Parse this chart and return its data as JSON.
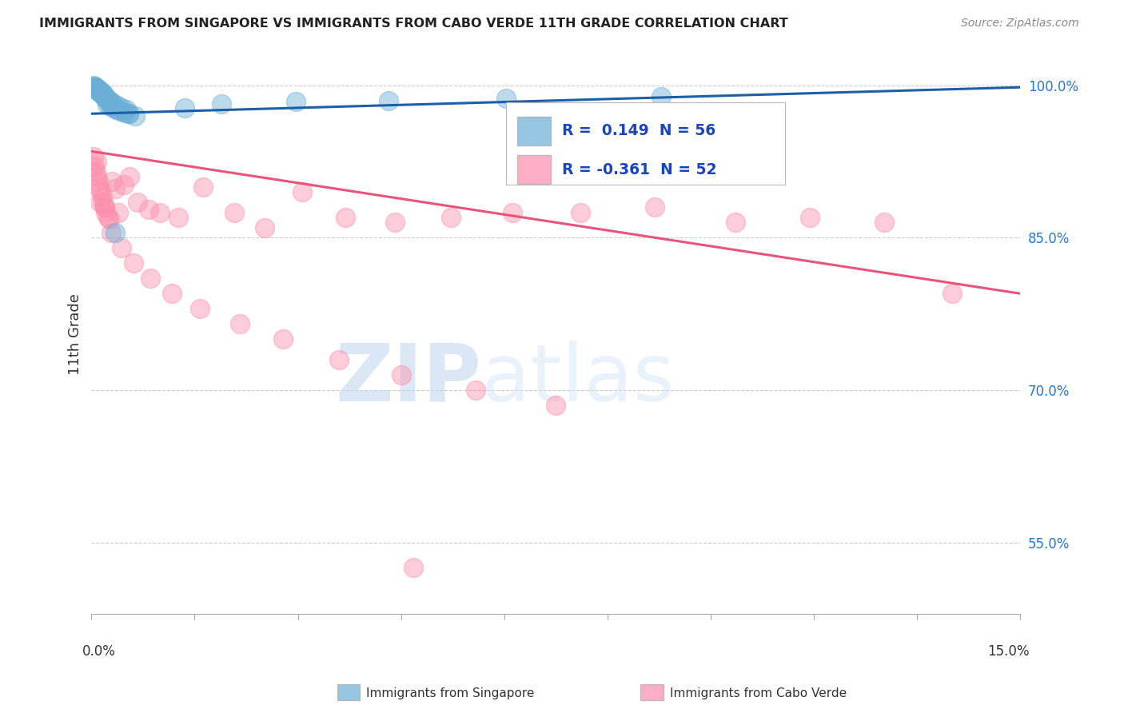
{
  "title": "IMMIGRANTS FROM SINGAPORE VS IMMIGRANTS FROM CABO VERDE 11TH GRADE CORRELATION CHART",
  "source": "Source: ZipAtlas.com",
  "ylabel": "11th Grade",
  "xmin": 0.0,
  "xmax": 15.0,
  "ymin": 48.0,
  "ymax": 103.0,
  "ytick_positions": [
    55.0,
    70.0,
    85.0,
    100.0
  ],
  "ytick_labels": [
    "55.0%",
    "70.0%",
    "85.0%",
    "100.0%"
  ],
  "legend_blue_label": "Immigrants from Singapore",
  "legend_pink_label": "Immigrants from Cabo Verde",
  "R_blue": "0.149",
  "N_blue": "56",
  "R_pink": "-0.361",
  "N_pink": "52",
  "blue_line_x": [
    0.0,
    15.0
  ],
  "blue_line_y": [
    97.2,
    99.8
  ],
  "pink_line_x": [
    0.0,
    15.0
  ],
  "pink_line_y": [
    93.5,
    79.5
  ],
  "watermark_text": "ZIPatlas",
  "background_color": "#ffffff",
  "blue_color": "#6baed6",
  "pink_color": "#fc8eac",
  "blue_line_color": "#1a5fa8",
  "pink_line_color": "#e8547a",
  "grid_color": "#cccccc",
  "blue_scatter_x": [
    0.03,
    0.04,
    0.05,
    0.06,
    0.07,
    0.08,
    0.09,
    0.1,
    0.11,
    0.12,
    0.13,
    0.14,
    0.15,
    0.16,
    0.17,
    0.18,
    0.19,
    0.2,
    0.22,
    0.24,
    0.26,
    0.28,
    0.3,
    0.33,
    0.37,
    0.4,
    0.45,
    0.5,
    0.6,
    0.7,
    0.05,
    0.08,
    0.1,
    0.12,
    0.15,
    0.18,
    0.2,
    0.22,
    0.25,
    0.28,
    0.32,
    0.36,
    0.42,
    0.48,
    0.56,
    2.1,
    3.3,
    4.8,
    6.7,
    9.2,
    1.5,
    0.6,
    0.38,
    0.3,
    0.25,
    0.55
  ],
  "blue_scatter_y": [
    100.0,
    99.8,
    99.9,
    99.7,
    99.8,
    99.6,
    99.7,
    99.5,
    99.6,
    99.4,
    99.5,
    99.3,
    99.4,
    99.2,
    99.3,
    99.1,
    99.2,
    99.0,
    98.8,
    98.6,
    98.5,
    98.4,
    98.2,
    98.0,
    97.8,
    97.6,
    97.5,
    97.4,
    97.2,
    97.0,
    99.8,
    99.6,
    99.5,
    99.4,
    99.3,
    99.1,
    99.0,
    98.9,
    98.7,
    98.5,
    98.4,
    98.2,
    98.0,
    97.8,
    97.6,
    98.2,
    98.4,
    98.5,
    98.7,
    98.9,
    97.8,
    97.2,
    85.5,
    97.9,
    98.1,
    97.3
  ],
  "pink_scatter_x": [
    0.03,
    0.05,
    0.07,
    0.09,
    0.11,
    0.13,
    0.15,
    0.17,
    0.19,
    0.21,
    0.23,
    0.26,
    0.29,
    0.33,
    0.38,
    0.44,
    0.52,
    0.62,
    0.75,
    0.92,
    1.1,
    1.4,
    1.8,
    2.3,
    2.8,
    3.4,
    4.1,
    4.9,
    5.8,
    6.8,
    7.9,
    9.1,
    10.4,
    11.6,
    12.8,
    13.9,
    0.08,
    0.14,
    0.22,
    0.32,
    0.48,
    0.68,
    0.95,
    1.3,
    1.75,
    2.4,
    3.1,
    4.0,
    5.0,
    6.2,
    7.5,
    5.2
  ],
  "pink_scatter_y": [
    93.0,
    92.0,
    91.5,
    91.0,
    90.5,
    90.0,
    89.5,
    89.0,
    88.5,
    88.0,
    87.5,
    87.0,
    86.8,
    90.5,
    89.8,
    87.5,
    90.2,
    91.0,
    88.5,
    87.8,
    87.5,
    87.0,
    90.0,
    87.5,
    86.0,
    89.5,
    87.0,
    86.5,
    87.0,
    87.5,
    87.5,
    88.0,
    86.5,
    87.0,
    86.5,
    79.5,
    92.5,
    88.5,
    88.0,
    85.5,
    84.0,
    82.5,
    81.0,
    79.5,
    78.0,
    76.5,
    75.0,
    73.0,
    71.5,
    70.0,
    68.5,
    52.5
  ]
}
